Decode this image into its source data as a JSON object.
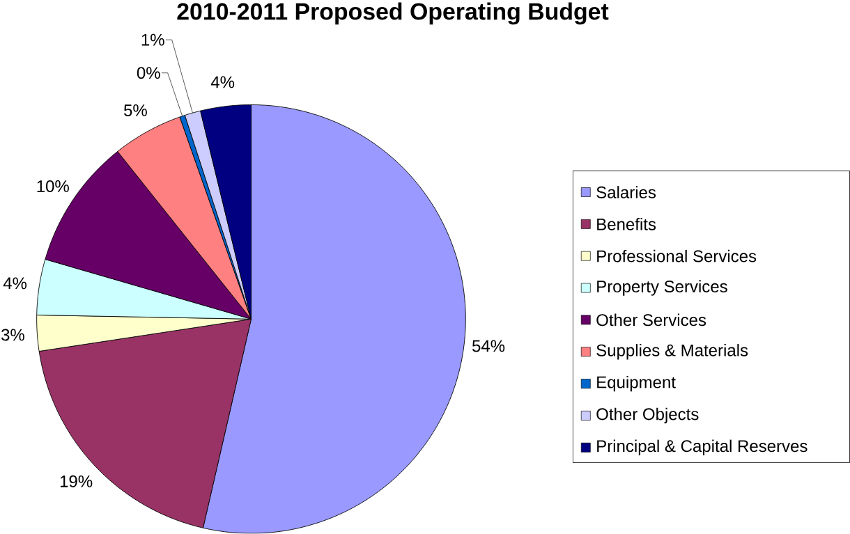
{
  "chart_data": {
    "type": "pie",
    "title": "2010-2011 Proposed Operating Budget",
    "categories": [
      "Salaries",
      "Benefits",
      "Professional Services",
      "Property Services",
      "Other Services",
      "Supplies & Materials",
      "Equipment",
      "Other Objects",
      "Principal & Capital Reserves"
    ],
    "values": [
      53.6,
      19.0,
      2.7,
      4.2,
      9.8,
      5.3,
      0.4,
      1.2,
      3.8
    ],
    "value_labels": [
      "54%",
      "19%",
      "3%",
      "4%",
      "10%",
      "5%",
      "0%",
      "1%",
      "4%"
    ],
    "colors": [
      "#9999ff",
      "#993366",
      "#ffffcc",
      "#ccffff",
      "#660066",
      "#ff8080",
      "#0066cc",
      "#ccccff",
      "#000080"
    ],
    "legend": "right"
  }
}
